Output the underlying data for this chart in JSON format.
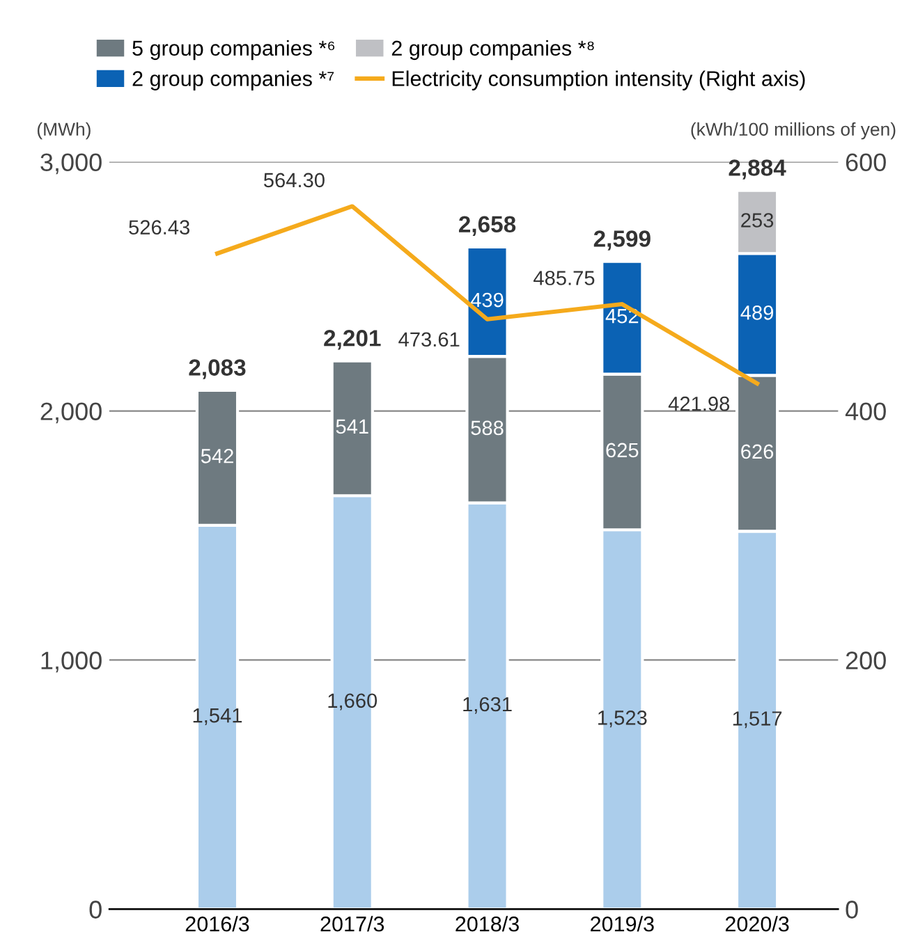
{
  "chart_data": {
    "type": "bar",
    "stacked": true,
    "ylabel": "(MWh)",
    "y2label": "(kWh/100 millions of yen)",
    "categories": [
      "2016/3",
      "2017/3",
      "2018/3",
      "2019/3",
      "2020/3"
    ],
    "series": [
      {
        "color": "#abcdeb",
        "values": [
          1541,
          1660,
          1631,
          1523,
          1517
        ],
        "value_labels": [
          "1,541",
          "1,660",
          "1,631",
          "1,523",
          "1,517"
        ]
      },
      {
        "name": "5 group companies *⁶",
        "color": "#6e7a80",
        "values": [
          542,
          541,
          588,
          625,
          626
        ],
        "value_labels": [
          "542",
          "541",
          "588",
          "625",
          "626"
        ]
      },
      {
        "name": "2 group companies *⁷",
        "color": "#0b62b4",
        "values": [
          null,
          null,
          439,
          452,
          489
        ],
        "value_labels": [
          null,
          null,
          "439",
          "452",
          "489"
        ]
      },
      {
        "name": "2 group companies *⁸",
        "color": "#bfc0c4",
        "values": [
          null,
          null,
          null,
          null,
          253
        ],
        "value_labels": [
          null,
          null,
          null,
          null,
          "253"
        ]
      },
      {
        "name": "Electricity consumption intensity (Right axis)",
        "type": "line",
        "axis": "y2",
        "color": "#f5aa1c",
        "marker": "none",
        "values": [
          526.43,
          564.3,
          473.61,
          485.75,
          421.98
        ],
        "value_labels": [
          "526.43",
          "564.30",
          "473.61",
          "485.75",
          "421.98"
        ]
      }
    ],
    "totals": [
      "2,083",
      "2,201",
      "2,658",
      "2,599",
      "2,884"
    ],
    "ylim": [
      0,
      3000
    ],
    "yticks": [
      {
        "value": 0,
        "label": "0"
      },
      {
        "value": 1000,
        "label": "1,000"
      },
      {
        "value": 2000,
        "label": "2,000"
      },
      {
        "value": 3000,
        "label": "3,000"
      }
    ],
    "y2lim": [
      0,
      600
    ],
    "y2ticks": [
      0,
      200,
      400,
      600
    ],
    "grid": "y",
    "legend": "top"
  }
}
